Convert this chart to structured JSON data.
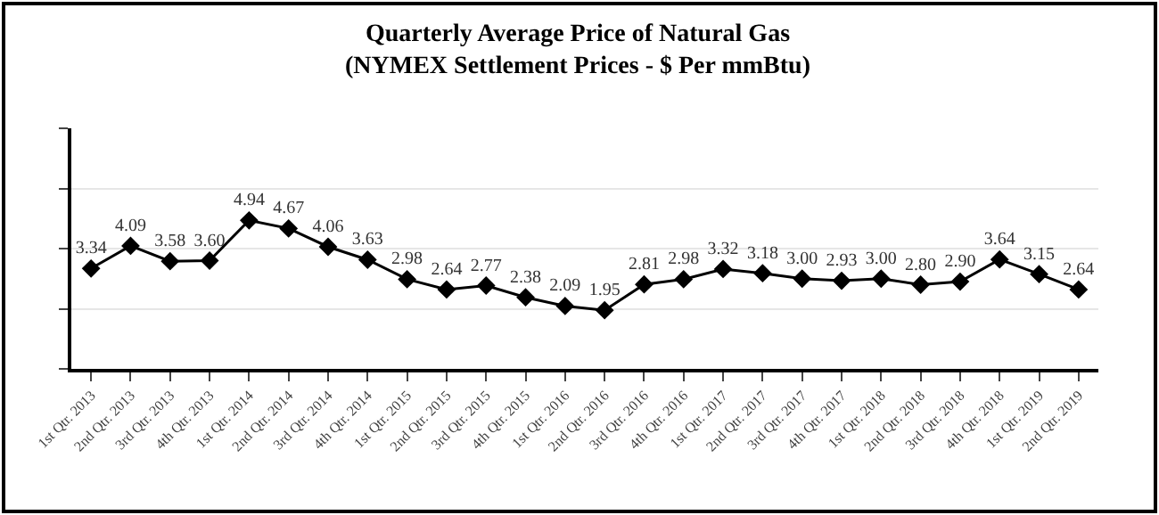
{
  "chart_data": {
    "type": "line",
    "title": "Quarterly Average Price of Natural Gas",
    "subtitle": "(NYMEX Settlement Prices - $ Per mmBtu)",
    "categories": [
      "1st Qtr. 2013",
      "2nd Qtr. 2013",
      "3rd Qtr. 2013",
      "4th Qtr. 2013",
      "1st Qtr. 2014",
      "2nd Qtr. 2014",
      "3rd Qtr. 2014",
      "4th Qtr. 2014",
      "1st Qtr. 2015",
      "2nd Qtr. 2015",
      "3rd Qtr. 2015",
      "4th Qtr. 2015",
      "1st Qtr. 2016",
      "2nd Qtr. 2016",
      "3rd Qtr. 2016",
      "4th Qtr. 2016",
      "1st Qtr. 2017",
      "2nd Qtr. 2017",
      "3rd Qtr. 2017",
      "4th Qtr. 2017",
      "1st Qtr. 2018",
      "2nd Qtr. 2018",
      "3rd Qtr. 2018",
      "4th Qtr. 2018",
      "1st Qtr. 2019",
      "2nd Qtr. 2019"
    ],
    "series": [
      {
        "color": "#000000",
        "values": [
          3.34,
          4.09,
          3.58,
          3.6,
          4.94,
          4.67,
          4.06,
          3.63,
          2.98,
          2.64,
          2.77,
          2.38,
          2.09,
          1.95,
          2.81,
          2.98,
          3.32,
          3.18,
          3.0,
          2.93,
          3.0,
          2.8,
          2.9,
          3.64,
          3.15,
          2.64
        ],
        "value_labels": [
          "3.34",
          "4.09",
          "3.58",
          "3.60",
          "4.94",
          "4.67",
          "4.06",
          "3.63",
          "2.98",
          "2.64",
          "2.77",
          "2.38",
          "2.09",
          "1.95",
          "2.81",
          "2.98",
          "3.32",
          "3.18",
          "3.00",
          "2.93",
          "3.00",
          "2.80",
          "2.90",
          "3.64",
          "3.15",
          "2.64"
        ]
      }
    ],
    "ylim": [
      0,
      8
    ],
    "yticks": [
      {
        "value": 0,
        "label": null
      },
      {
        "value": 2,
        "label": null
      },
      {
        "value": 4,
        "label": null
      },
      {
        "value": 6,
        "label": null
      },
      {
        "value": 8,
        "label": null
      }
    ],
    "tick_labels": "x",
    "grid": "y",
    "marker": "diamond",
    "line_style": "solid"
  }
}
